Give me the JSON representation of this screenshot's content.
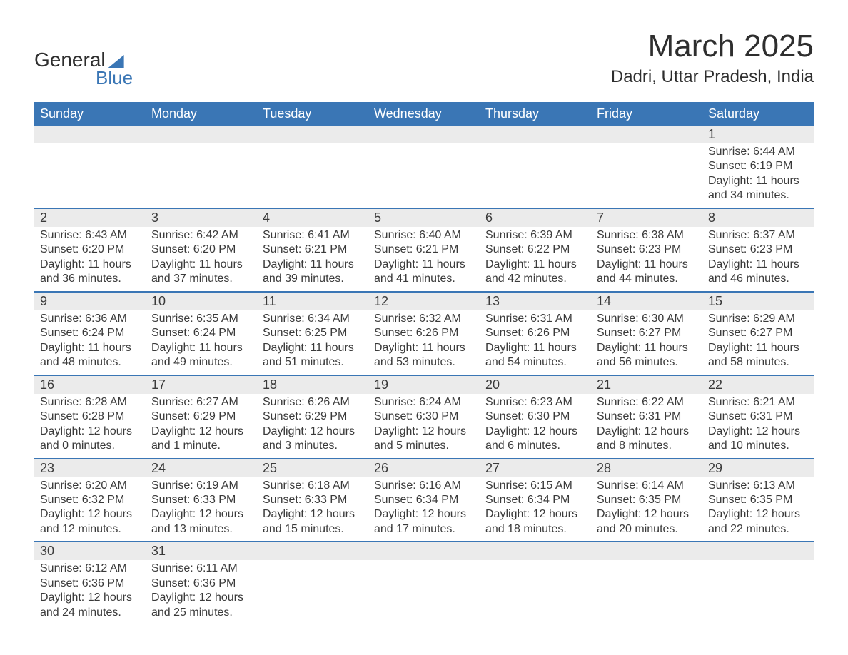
{
  "logo": {
    "line1": "General",
    "line2": "Blue",
    "accent_color": "#3a76b5"
  },
  "title": "March 2025",
  "location": "Dadri, Uttar Pradesh, India",
  "colors": {
    "header_bg": "#3a76b5",
    "header_text": "#ffffff",
    "daynum_bg": "#ebebeb",
    "row_border": "#3a76b5",
    "text": "#3a3a3a",
    "page_bg": "#ffffff"
  },
  "typography": {
    "title_fontsize": 44,
    "location_fontsize": 24,
    "header_fontsize": 18,
    "daynum_fontsize": 18,
    "cell_fontsize": 16
  },
  "day_labels": [
    "Sunday",
    "Monday",
    "Tuesday",
    "Wednesday",
    "Thursday",
    "Friday",
    "Saturday"
  ],
  "weeks": [
    [
      null,
      null,
      null,
      null,
      null,
      null,
      {
        "n": "1",
        "sr": "Sunrise: 6:44 AM",
        "ss": "Sunset: 6:19 PM",
        "d1": "Daylight: 11 hours",
        "d2": "and 34 minutes."
      }
    ],
    [
      {
        "n": "2",
        "sr": "Sunrise: 6:43 AM",
        "ss": "Sunset: 6:20 PM",
        "d1": "Daylight: 11 hours",
        "d2": "and 36 minutes."
      },
      {
        "n": "3",
        "sr": "Sunrise: 6:42 AM",
        "ss": "Sunset: 6:20 PM",
        "d1": "Daylight: 11 hours",
        "d2": "and 37 minutes."
      },
      {
        "n": "4",
        "sr": "Sunrise: 6:41 AM",
        "ss": "Sunset: 6:21 PM",
        "d1": "Daylight: 11 hours",
        "d2": "and 39 minutes."
      },
      {
        "n": "5",
        "sr": "Sunrise: 6:40 AM",
        "ss": "Sunset: 6:21 PM",
        "d1": "Daylight: 11 hours",
        "d2": "and 41 minutes."
      },
      {
        "n": "6",
        "sr": "Sunrise: 6:39 AM",
        "ss": "Sunset: 6:22 PM",
        "d1": "Daylight: 11 hours",
        "d2": "and 42 minutes."
      },
      {
        "n": "7",
        "sr": "Sunrise: 6:38 AM",
        "ss": "Sunset: 6:23 PM",
        "d1": "Daylight: 11 hours",
        "d2": "and 44 minutes."
      },
      {
        "n": "8",
        "sr": "Sunrise: 6:37 AM",
        "ss": "Sunset: 6:23 PM",
        "d1": "Daylight: 11 hours",
        "d2": "and 46 minutes."
      }
    ],
    [
      {
        "n": "9",
        "sr": "Sunrise: 6:36 AM",
        "ss": "Sunset: 6:24 PM",
        "d1": "Daylight: 11 hours",
        "d2": "and 48 minutes."
      },
      {
        "n": "10",
        "sr": "Sunrise: 6:35 AM",
        "ss": "Sunset: 6:24 PM",
        "d1": "Daylight: 11 hours",
        "d2": "and 49 minutes."
      },
      {
        "n": "11",
        "sr": "Sunrise: 6:34 AM",
        "ss": "Sunset: 6:25 PM",
        "d1": "Daylight: 11 hours",
        "d2": "and 51 minutes."
      },
      {
        "n": "12",
        "sr": "Sunrise: 6:32 AM",
        "ss": "Sunset: 6:26 PM",
        "d1": "Daylight: 11 hours",
        "d2": "and 53 minutes."
      },
      {
        "n": "13",
        "sr": "Sunrise: 6:31 AM",
        "ss": "Sunset: 6:26 PM",
        "d1": "Daylight: 11 hours",
        "d2": "and 54 minutes."
      },
      {
        "n": "14",
        "sr": "Sunrise: 6:30 AM",
        "ss": "Sunset: 6:27 PM",
        "d1": "Daylight: 11 hours",
        "d2": "and 56 minutes."
      },
      {
        "n": "15",
        "sr": "Sunrise: 6:29 AM",
        "ss": "Sunset: 6:27 PM",
        "d1": "Daylight: 11 hours",
        "d2": "and 58 minutes."
      }
    ],
    [
      {
        "n": "16",
        "sr": "Sunrise: 6:28 AM",
        "ss": "Sunset: 6:28 PM",
        "d1": "Daylight: 12 hours",
        "d2": "and 0 minutes."
      },
      {
        "n": "17",
        "sr": "Sunrise: 6:27 AM",
        "ss": "Sunset: 6:29 PM",
        "d1": "Daylight: 12 hours",
        "d2": "and 1 minute."
      },
      {
        "n": "18",
        "sr": "Sunrise: 6:26 AM",
        "ss": "Sunset: 6:29 PM",
        "d1": "Daylight: 12 hours",
        "d2": "and 3 minutes."
      },
      {
        "n": "19",
        "sr": "Sunrise: 6:24 AM",
        "ss": "Sunset: 6:30 PM",
        "d1": "Daylight: 12 hours",
        "d2": "and 5 minutes."
      },
      {
        "n": "20",
        "sr": "Sunrise: 6:23 AM",
        "ss": "Sunset: 6:30 PM",
        "d1": "Daylight: 12 hours",
        "d2": "and 6 minutes."
      },
      {
        "n": "21",
        "sr": "Sunrise: 6:22 AM",
        "ss": "Sunset: 6:31 PM",
        "d1": "Daylight: 12 hours",
        "d2": "and 8 minutes."
      },
      {
        "n": "22",
        "sr": "Sunrise: 6:21 AM",
        "ss": "Sunset: 6:31 PM",
        "d1": "Daylight: 12 hours",
        "d2": "and 10 minutes."
      }
    ],
    [
      {
        "n": "23",
        "sr": "Sunrise: 6:20 AM",
        "ss": "Sunset: 6:32 PM",
        "d1": "Daylight: 12 hours",
        "d2": "and 12 minutes."
      },
      {
        "n": "24",
        "sr": "Sunrise: 6:19 AM",
        "ss": "Sunset: 6:33 PM",
        "d1": "Daylight: 12 hours",
        "d2": "and 13 minutes."
      },
      {
        "n": "25",
        "sr": "Sunrise: 6:18 AM",
        "ss": "Sunset: 6:33 PM",
        "d1": "Daylight: 12 hours",
        "d2": "and 15 minutes."
      },
      {
        "n": "26",
        "sr": "Sunrise: 6:16 AM",
        "ss": "Sunset: 6:34 PM",
        "d1": "Daylight: 12 hours",
        "d2": "and 17 minutes."
      },
      {
        "n": "27",
        "sr": "Sunrise: 6:15 AM",
        "ss": "Sunset: 6:34 PM",
        "d1": "Daylight: 12 hours",
        "d2": "and 18 minutes."
      },
      {
        "n": "28",
        "sr": "Sunrise: 6:14 AM",
        "ss": "Sunset: 6:35 PM",
        "d1": "Daylight: 12 hours",
        "d2": "and 20 minutes."
      },
      {
        "n": "29",
        "sr": "Sunrise: 6:13 AM",
        "ss": "Sunset: 6:35 PM",
        "d1": "Daylight: 12 hours",
        "d2": "and 22 minutes."
      }
    ],
    [
      {
        "n": "30",
        "sr": "Sunrise: 6:12 AM",
        "ss": "Sunset: 6:36 PM",
        "d1": "Daylight: 12 hours",
        "d2": "and 24 minutes."
      },
      {
        "n": "31",
        "sr": "Sunrise: 6:11 AM",
        "ss": "Sunset: 6:36 PM",
        "d1": "Daylight: 12 hours",
        "d2": "and 25 minutes."
      },
      null,
      null,
      null,
      null,
      null
    ]
  ]
}
